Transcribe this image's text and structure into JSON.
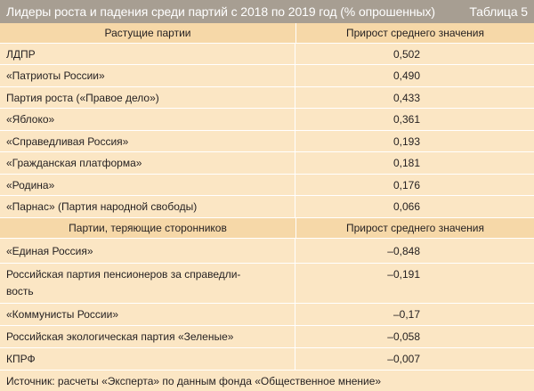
{
  "title": "Лидеры роста и падения среди партий с 2018 по 2019 год (% опрошенных)",
  "table_label": "Таблица 5",
  "section_growing": {
    "col1": "Растущие партии",
    "col2": "Прирост среднего значения",
    "rows": [
      {
        "party": "ЛДПР",
        "value": "0,502"
      },
      {
        "party": "«Патриоты России»",
        "value": "0,490"
      },
      {
        "party": "Партия роста («Правое дело»)",
        "value": "0,433"
      },
      {
        "party": "«Яблоко»",
        "value": "0,361"
      },
      {
        "party": "«Справедливая Россия»",
        "value": "0,193"
      },
      {
        "party": "«Гражданская платформа»",
        "value": "0,181"
      },
      {
        "party": "«Родина»",
        "value": "0,176"
      },
      {
        "party": "«Парнас» (Партия народной свободы)",
        "value": "0,066"
      }
    ]
  },
  "section_losing": {
    "col1": "Партии, теряющие сторонников",
    "col2": "Прирост среднего значения",
    "rows": [
      {
        "party": "«Единая Россия»",
        "value": "–0,848"
      },
      {
        "party_line1": "Российская партия пенсионеров за справедли-",
        "party_line2": "вость",
        "value": "–0,191"
      },
      {
        "party": "«Коммунисты России»",
        "value": "–0,17"
      },
      {
        "party": "Российская экологическая партия «Зеленые»",
        "value": "–0,058"
      },
      {
        "party": "КПРФ",
        "value": "–0,007"
      }
    ]
  },
  "source": "Источник: расчеты «Эксперта» по данным фонда «Общественное мнение»"
}
